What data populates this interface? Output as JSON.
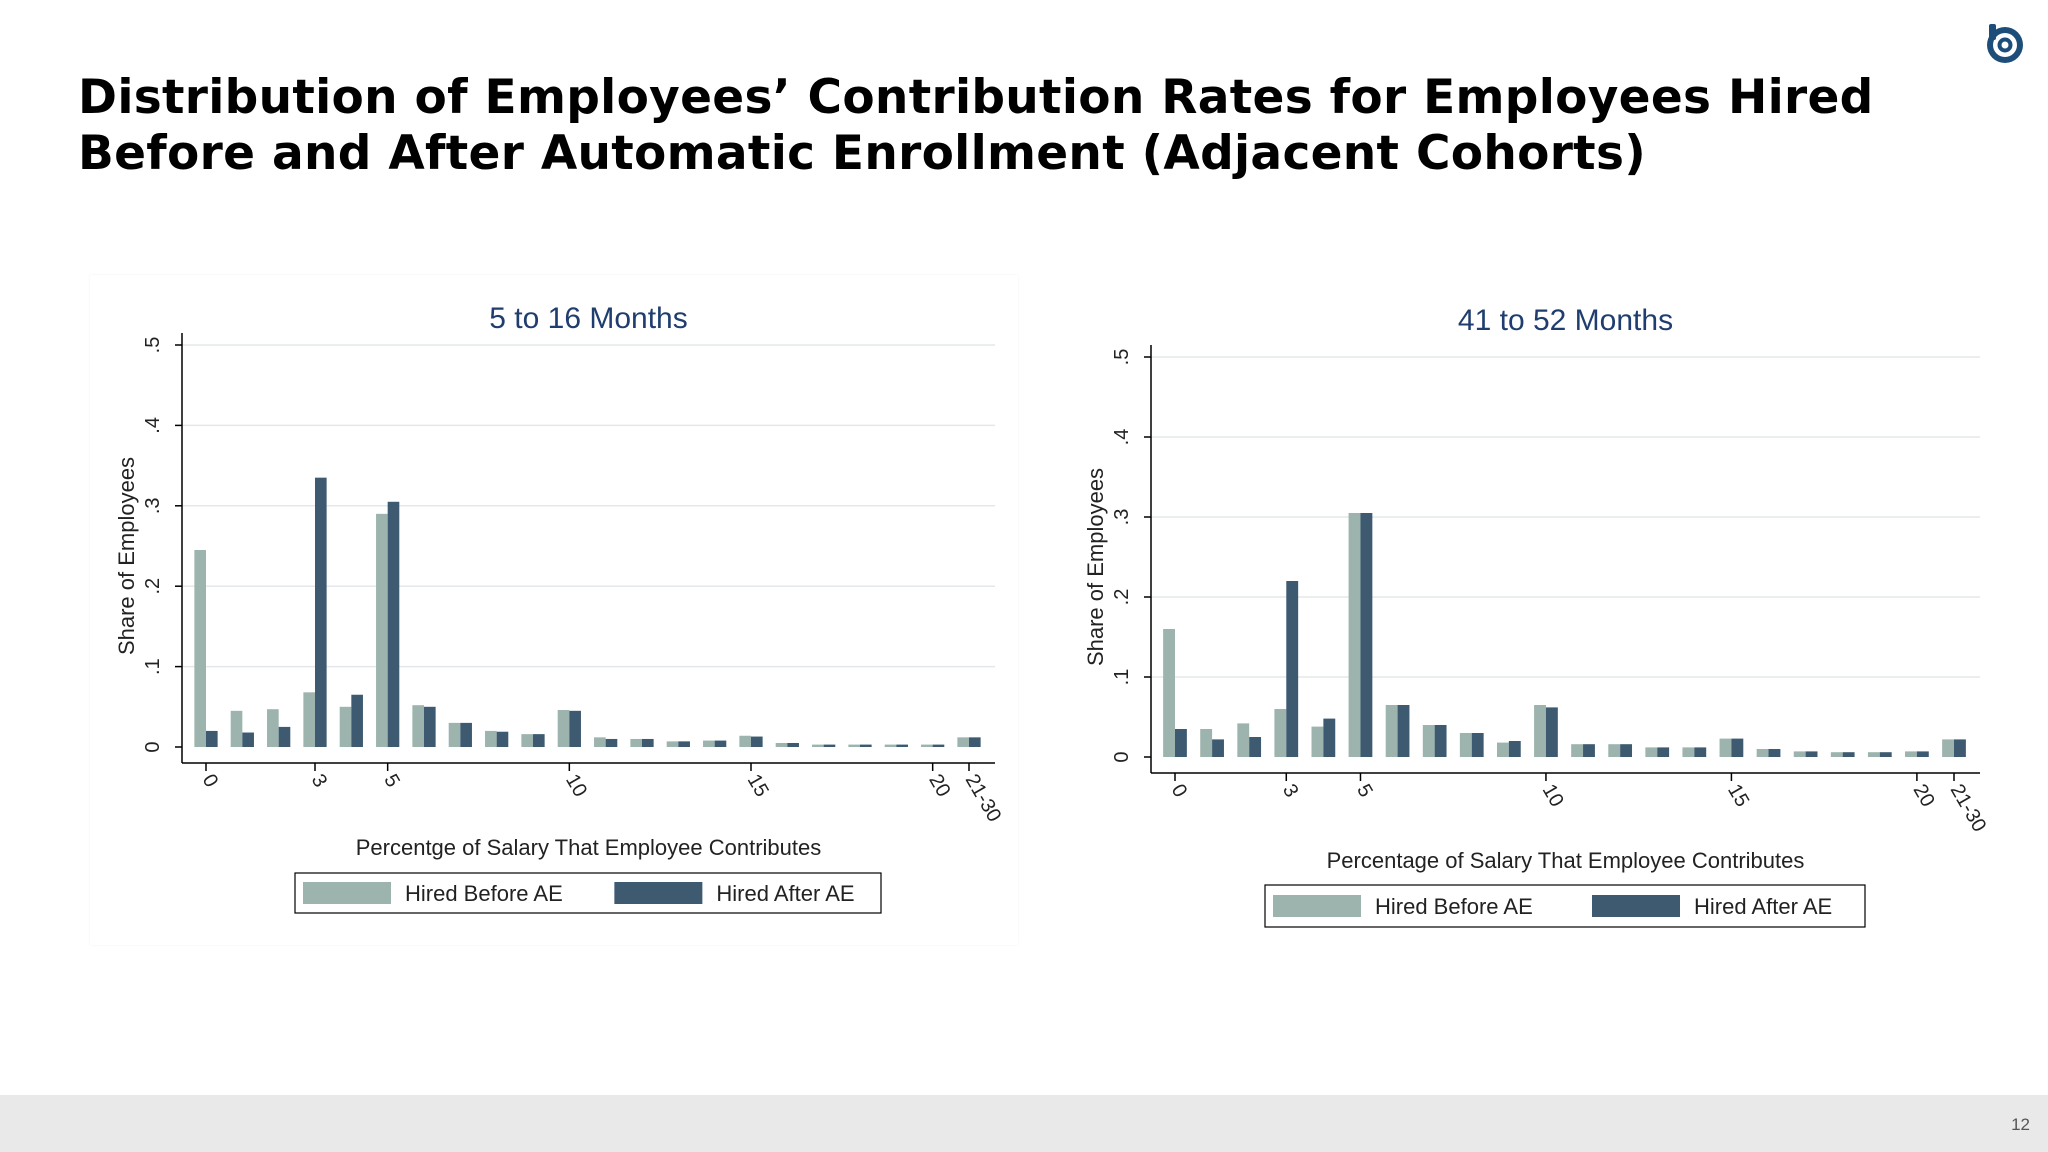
{
  "slide": {
    "title_line1": "Distribution of Employees’ Contribution Rates for Employees Hired",
    "title_line2": "Before and After Automatic Enrollment (Adjacent Cohorts)",
    "page_number": "12",
    "logo_icon": "circular-brand-logo-icon"
  },
  "colors": {
    "before": "#9db3ad",
    "after": "#3d5a71",
    "title_blue": "#1f3d6e",
    "grid": "#e4e8ea"
  },
  "chart_data": [
    {
      "type": "bar",
      "title": "5 to 16 Months",
      "xlabel": "Percentge of Salary That Employee Contributes",
      "ylabel": "Share of Employees",
      "ylim": [
        0,
        0.5
      ],
      "yticks": [
        {
          "value": 0,
          "label": "0"
        },
        {
          "value": 0.1,
          "label": ".1"
        },
        {
          "value": 0.2,
          "label": ".2"
        },
        {
          "value": 0.3,
          "label": ".3"
        },
        {
          "value": 0.4,
          "label": ".4"
        },
        {
          "value": 0.5,
          "label": ".5"
        }
      ],
      "x_tick_labels": [
        "0",
        "3",
        "5",
        "10",
        "15",
        "20",
        "21-30"
      ],
      "x_tick_positions": [
        0,
        3,
        5,
        10,
        15,
        20,
        21
      ],
      "categories": [
        0,
        1,
        2,
        3,
        4,
        5,
        6,
        7,
        8,
        9,
        10,
        11,
        12,
        13,
        14,
        15,
        16,
        17,
        18,
        19,
        20,
        21
      ],
      "grid": true,
      "legend_position": "bottom",
      "series": [
        {
          "name": "Hired Before AE",
          "values": [
            0.245,
            0.045,
            0.047,
            0.068,
            0.05,
            0.29,
            0.052,
            0.03,
            0.02,
            0.016,
            0.046,
            0.012,
            0.01,
            0.007,
            0.008,
            0.014,
            0.005,
            0.003,
            0.003,
            0.003,
            0.003,
            0.012
          ]
        },
        {
          "name": "Hired After AE",
          "values": [
            0.02,
            0.018,
            0.025,
            0.335,
            0.065,
            0.305,
            0.05,
            0.03,
            0.019,
            0.016,
            0.045,
            0.01,
            0.01,
            0.007,
            0.008,
            0.013,
            0.005,
            0.003,
            0.003,
            0.003,
            0.003,
            0.012
          ]
        }
      ]
    },
    {
      "type": "bar",
      "title": "41 to 52 Months",
      "xlabel": "Percentage of Salary That Employee Contributes",
      "ylabel": "Share of Employees",
      "ylim": [
        0,
        0.5
      ],
      "yticks": [
        {
          "value": 0,
          "label": "0"
        },
        {
          "value": 0.1,
          "label": ".1"
        },
        {
          "value": 0.2,
          "label": ".2"
        },
        {
          "value": 0.3,
          "label": ".3"
        },
        {
          "value": 0.4,
          "label": ".4"
        },
        {
          "value": 0.5,
          "label": ".5"
        }
      ],
      "x_tick_labels": [
        "0",
        "3",
        "5",
        "10",
        "15",
        "20",
        "21-30"
      ],
      "x_tick_positions": [
        0,
        3,
        5,
        10,
        15,
        20,
        21
      ],
      "categories": [
        0,
        1,
        2,
        3,
        4,
        5,
        6,
        7,
        8,
        9,
        10,
        11,
        12,
        13,
        14,
        15,
        16,
        17,
        18,
        19,
        20,
        21
      ],
      "grid": true,
      "legend_position": "bottom",
      "series": [
        {
          "name": "Hired Before AE",
          "values": [
            0.16,
            0.035,
            0.042,
            0.06,
            0.038,
            0.305,
            0.065,
            0.04,
            0.03,
            0.018,
            0.065,
            0.016,
            0.016,
            0.012,
            0.012,
            0.023,
            0.01,
            0.007,
            0.006,
            0.006,
            0.007,
            0.022
          ]
        },
        {
          "name": "Hired After AE",
          "values": [
            0.035,
            0.022,
            0.025,
            0.22,
            0.048,
            0.305,
            0.065,
            0.04,
            0.03,
            0.02,
            0.062,
            0.016,
            0.016,
            0.012,
            0.012,
            0.023,
            0.01,
            0.007,
            0.006,
            0.006,
            0.007,
            0.022
          ]
        }
      ]
    }
  ]
}
